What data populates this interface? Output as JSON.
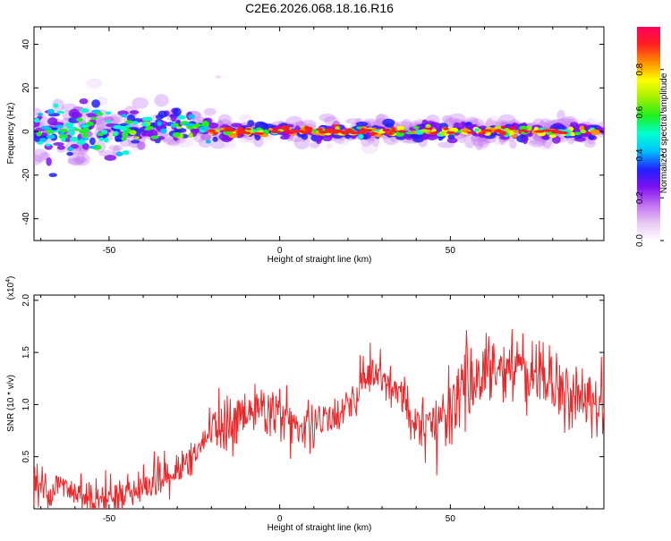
{
  "title": "C2E6.2026.068.18.16.R16",
  "colors": {
    "snr_line": "#e8282a",
    "axis": "#000000",
    "background": "#ffffff"
  },
  "chart_data": [
    {
      "type": "heatmap",
      "name": "spectrogram",
      "xlabel": "Height of straight line (km)",
      "ylabel": "Frequency (Hz)",
      "xlim": [
        -72,
        95
      ],
      "ylim": [
        -50,
        48
      ],
      "xticks": [
        -50,
        0,
        50
      ],
      "yticks": [
        -40,
        -20,
        0,
        20,
        40
      ],
      "colorbar": {
        "label": "Normalized spectral amplitude",
        "range": [
          0,
          1
        ],
        "ticks": [
          "0.0",
          "0.2",
          "0.4",
          "0.6",
          "0.8"
        ],
        "colors": [
          "#ffffff",
          "#e8c8f4",
          "#c070f0",
          "#8010f0",
          "#2020ff",
          "#00c0ff",
          "#00ffd0",
          "#20f020",
          "#a0f000",
          "#ffff00",
          "#ff9000",
          "#ff2020",
          "#ff0060"
        ]
      },
      "description_segments": [
        {
          "x_from": -72,
          "x_to": -45,
          "center_freq": 0,
          "spread_hz": 10,
          "amplitude": "0.1-0.4 scattered"
        },
        {
          "x_from": -45,
          "x_to": -20,
          "center_freq": 2,
          "spread_hz": 6,
          "amplitude": "0.2-0.5"
        },
        {
          "x_from": -20,
          "x_to": 95,
          "center_freq": 0,
          "spread_hz": 3,
          "amplitude": "0.5-1.0 strong band"
        }
      ]
    },
    {
      "type": "line",
      "name": "snr",
      "xlabel": "Height of straight line (km)",
      "ylabel": "SNR (10 * v/v)",
      "y_multiplier": "(x10",
      "y_multiplier_exp": "4",
      "y_multiplier_close": ")",
      "xlim": [
        -72,
        95
      ],
      "ylim": [
        0,
        2.05
      ],
      "xticks": [
        -50,
        0,
        50
      ],
      "yticks": [
        0.5,
        1.0,
        1.5,
        2.0
      ],
      "series": [
        {
          "name": "SNR",
          "trend_x": [
            -72,
            -65,
            -60,
            -55,
            -50,
            -45,
            -40,
            -35,
            -30,
            -25,
            -20,
            -15,
            -10,
            -5,
            0,
            5,
            10,
            15,
            20,
            25,
            30,
            35,
            40,
            45,
            50,
            55,
            60,
            65,
            70,
            75,
            80,
            85,
            90,
            95
          ],
          "trend_y": [
            0.2,
            0.22,
            0.15,
            0.12,
            0.12,
            0.15,
            0.22,
            0.28,
            0.35,
            0.5,
            0.75,
            0.85,
            0.9,
            0.95,
            0.9,
            0.8,
            0.75,
            0.85,
            1.0,
            1.2,
            1.25,
            1.1,
            0.85,
            0.8,
            1.0,
            1.2,
            1.3,
            1.35,
            1.4,
            1.3,
            1.25,
            1.2,
            1.1,
            1.0
          ]
        }
      ]
    }
  ]
}
